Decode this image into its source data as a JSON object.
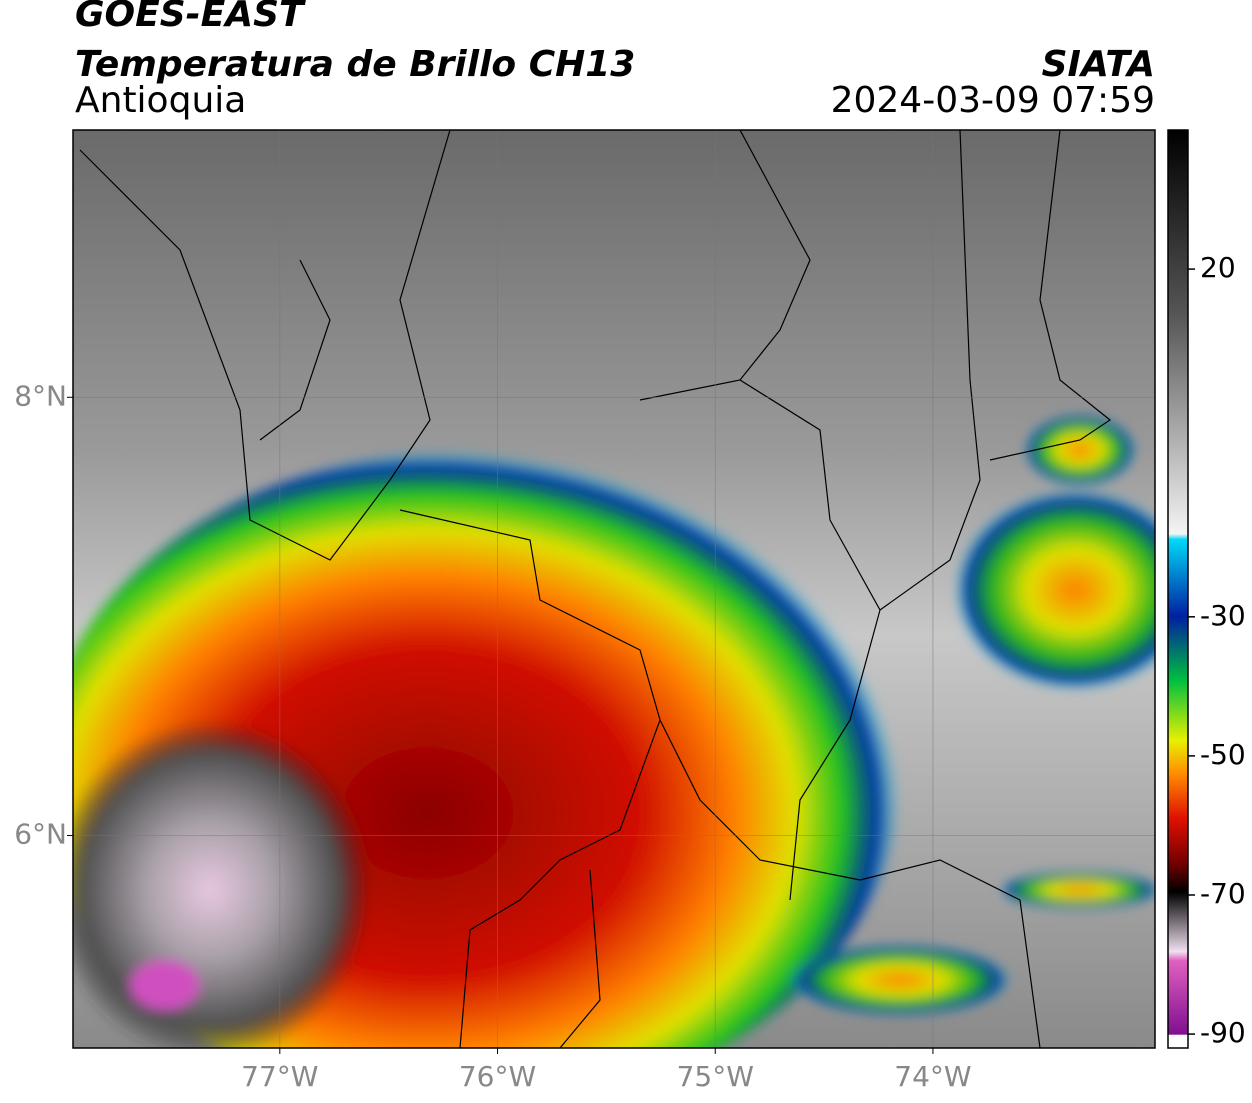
{
  "header": {
    "title": "GOES-EAST",
    "subtitle": "Temperatura de Brillo CH13",
    "region": "Antioquia",
    "source": "SIATA",
    "timestamp": "2024-03-09 07:59"
  },
  "map": {
    "lonlim": [
      -77.95,
      -72.98
    ],
    "latlim": [
      5.03,
      9.22
    ],
    "lonticks": [
      {
        "value": -77,
        "label": "77°W"
      },
      {
        "value": -76,
        "label": "76°W"
      },
      {
        "value": -75,
        "label": "75°W"
      },
      {
        "value": -74,
        "label": "74°W"
      }
    ],
    "latticks": [
      {
        "value": 8,
        "label": "8°N"
      },
      {
        "value": 6,
        "label": "6°N"
      }
    ],
    "grid": true
  },
  "colorbar": {
    "vlim": [
      -92,
      40
    ],
    "ticks": [
      20,
      -30,
      -50,
      -70,
      -90
    ]
  }
}
